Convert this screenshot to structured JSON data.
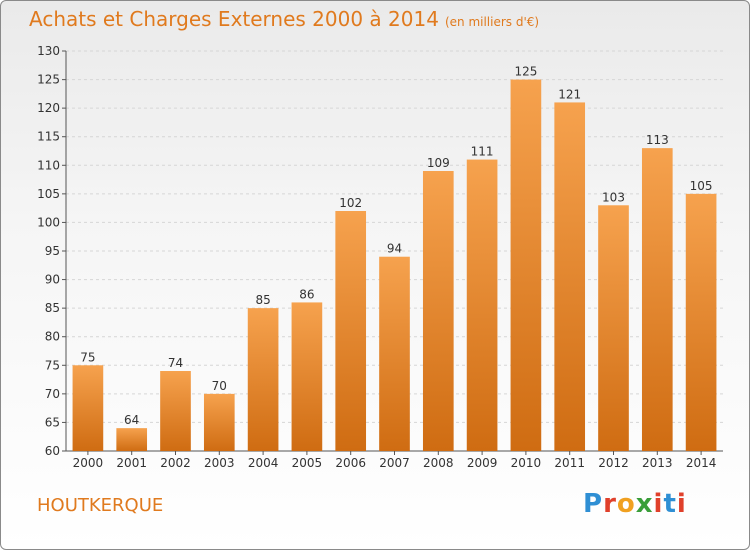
{
  "title": "Achats et Charges Externes 2000 à 2014",
  "subtitle": "(en milliers d'€)",
  "commune": "HOUTKERQUE",
  "brand": {
    "letters": [
      "P",
      "r",
      "o",
      "x",
      "i",
      "t",
      "i"
    ],
    "colors": [
      "#2f8fd4",
      "#e0402b",
      "#f0a020",
      "#3a9e3a",
      "#e0402b",
      "#2f8fd4",
      "#e0402b"
    ]
  },
  "chart_data": {
    "type": "bar",
    "title": "Achats et Charges Externes 2000 à 2014",
    "categories": [
      "2000",
      "2001",
      "2002",
      "2003",
      "2004",
      "2005",
      "2006",
      "2007",
      "2008",
      "2009",
      "2010",
      "2011",
      "2012",
      "2013",
      "2014"
    ],
    "values": [
      75,
      64,
      74,
      70,
      85,
      86,
      102,
      94,
      109,
      111,
      125,
      121,
      103,
      113,
      105
    ],
    "ylim": [
      60,
      130
    ],
    "yticks": [
      60,
      65,
      70,
      75,
      80,
      85,
      90,
      95,
      100,
      105,
      110,
      115,
      120,
      125,
      130
    ],
    "grid": true,
    "bar_color_top": "#f6a24e",
    "bar_color_bottom": "#cf6c12"
  }
}
